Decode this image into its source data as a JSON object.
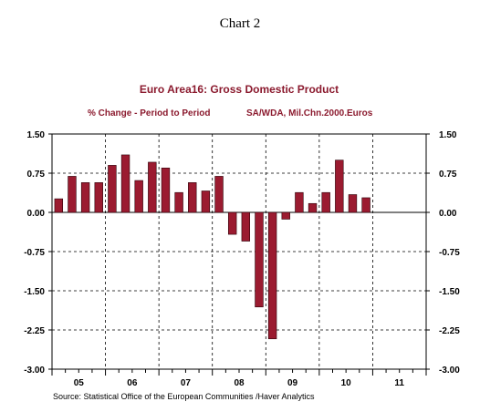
{
  "header": {
    "chart_label": "Chart 2"
  },
  "source": "Source:  Statistical Office of the European Communities /Haver Analytics",
  "colors": {
    "bar": "#9b1b30",
    "bar_edge": "#2a0008",
    "title": "#8b1a2e",
    "axis": "#000000",
    "grid": "#000000"
  },
  "chart_data": {
    "type": "bar",
    "title": "Euro Area16: Gross Domestic Product",
    "subtitle_left": "% Change - Period to Period",
    "subtitle_right": "SA/WDA, Mil.Chn.2000.Euros",
    "xlabel": "",
    "ylabel": "",
    "ylim": [
      -3.0,
      1.5
    ],
    "yticks": [
      "1.50",
      "0.75",
      "0.00",
      "-0.75",
      "-1.50",
      "-2.25",
      "-3.00"
    ],
    "ytick_values": [
      1.5,
      0.75,
      0.0,
      -0.75,
      -1.5,
      -2.25,
      -3.0
    ],
    "grid": true,
    "year_labels": [
      "05",
      "06",
      "07",
      "08",
      "09",
      "10",
      "11"
    ],
    "categories": [
      "05Q1",
      "05Q2",
      "05Q3",
      "05Q4",
      "06Q1",
      "06Q2",
      "06Q3",
      "06Q4",
      "07Q1",
      "07Q2",
      "07Q3",
      "07Q4",
      "08Q1",
      "08Q2",
      "08Q3",
      "08Q4",
      "09Q1",
      "09Q2",
      "09Q3",
      "09Q4",
      "10Q1",
      "10Q2",
      "10Q3",
      "10Q4",
      "11Q1",
      "11Q2",
      "11Q3",
      "11Q4"
    ],
    "values": [
      0.26,
      0.69,
      0.57,
      0.57,
      0.9,
      1.1,
      0.61,
      0.96,
      0.85,
      0.38,
      0.57,
      0.41,
      0.69,
      -0.42,
      -0.55,
      -1.81,
      -2.42,
      -0.13,
      0.38,
      0.17,
      0.38,
      1.0,
      0.34,
      0.28,
      null,
      null,
      null,
      null
    ]
  }
}
